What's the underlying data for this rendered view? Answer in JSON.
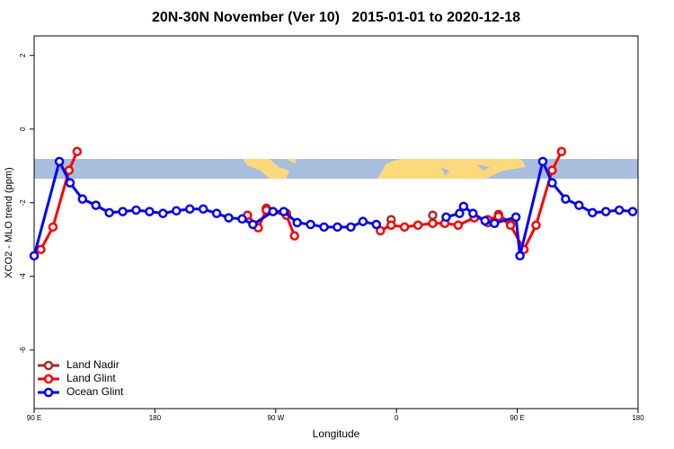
{
  "chart_data": {
    "type": "line",
    "title": "20N-30N November (Ver 10)   2015-01-01 to 2020-12-18",
    "x_label": "Longitude",
    "y_label": "XCO2 - MLO trend (ppm)",
    "xlim": [
      90,
      540
    ],
    "ylim": [
      -7.59,
      2.53
    ],
    "xticks": [
      {
        "value": 90,
        "label": "90 E"
      },
      180,
      {
        "value": 270,
        "label": "90 W"
      },
      {
        "value": 360,
        "label": "0"
      },
      {
        "value": 450,
        "label": "90 E"
      },
      {
        "value": 540,
        "label": "180"
      }
    ],
    "yticks": [
      -6,
      -4,
      -2,
      0,
      2
    ],
    "legend": "bottom-left",
    "series": [
      {
        "name": "Land Nadir",
        "color": "#a52a2a",
        "x": [
          263,
          278,
          null,
          356,
          null,
          387,
          null,
          428,
          436,
          445
        ],
        "values": [
          -2.15,
          -2.29,
          null,
          -2.46,
          null,
          -2.34,
          null,
          -2.54,
          -2.32,
          -2.56
        ]
      },
      {
        "name": "Land Glint",
        "color": "#ff0000",
        "x": [
          95,
          104,
          116,
          122,
          null,
          249,
          257,
          263,
          278,
          284,
          null,
          348,
          356,
          366,
          376,
          387,
          396,
          406,
          418,
          428,
          436,
          445,
          455,
          464,
          476,
          483
        ],
        "values": [
          -3.27,
          -2.66,
          -1.12,
          -0.61,
          null,
          -2.34,
          -2.68,
          -2.2,
          -2.34,
          -2.9,
          null,
          -2.76,
          -2.61,
          -2.66,
          -2.61,
          -2.56,
          -2.56,
          -2.61,
          -2.41,
          -2.46,
          -2.37,
          -2.61,
          -3.27,
          -2.61,
          -1.12,
          -0.61
        ]
      },
      {
        "name": "Ocean Glint",
        "color": "#0000ff",
        "x": [
          90,
          108.8,
          116.8,
          126,
          136,
          146,
          156,
          166,
          176,
          186,
          196,
          206,
          216,
          226,
          235,
          245,
          253,
          268,
          276,
          286,
          296,
          306,
          316,
          326,
          335,
          345,
          null,
          397,
          407,
          410,
          417,
          426,
          433,
          449,
          452,
          469,
          476,
          486,
          496,
          506,
          516,
          526,
          536
        ],
        "values": [
          -3.44,
          -0.88,
          -1.46,
          -1.9,
          -2.07,
          -2.27,
          -2.24,
          -2.2,
          -2.24,
          -2.29,
          -2.22,
          -2.17,
          -2.17,
          -2.29,
          -2.41,
          -2.44,
          -2.59,
          -2.24,
          -2.24,
          -2.54,
          -2.59,
          -2.66,
          -2.66,
          -2.66,
          -2.51,
          -2.59,
          null,
          -2.39,
          -2.29,
          -2.1,
          -2.29,
          -2.49,
          -2.56,
          -2.39,
          -3.44,
          -0.88,
          -1.46,
          -1.9,
          -2.07,
          -2.27,
          -2.24,
          -2.2,
          -2.24
        ]
      }
    ]
  }
}
